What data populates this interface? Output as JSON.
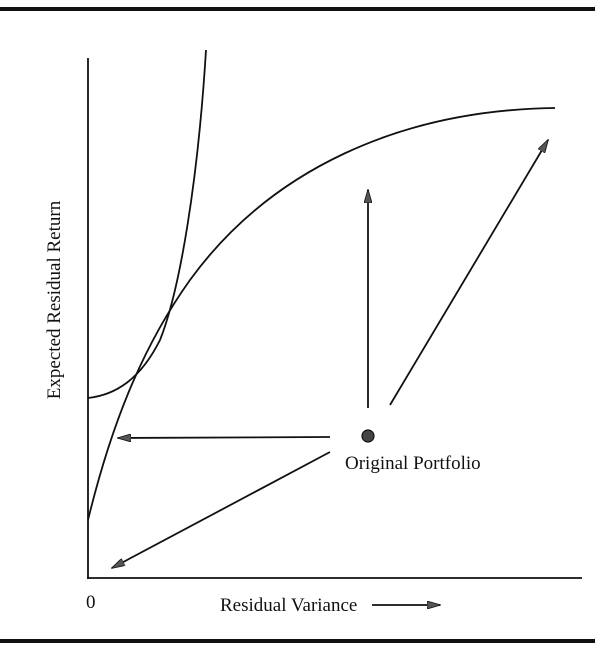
{
  "figure": {
    "y_axis_label": "Expected Residual Return",
    "x_axis_label": "Residual Variance",
    "origin_label": "0",
    "point_label": "Original Portfolio"
  }
}
